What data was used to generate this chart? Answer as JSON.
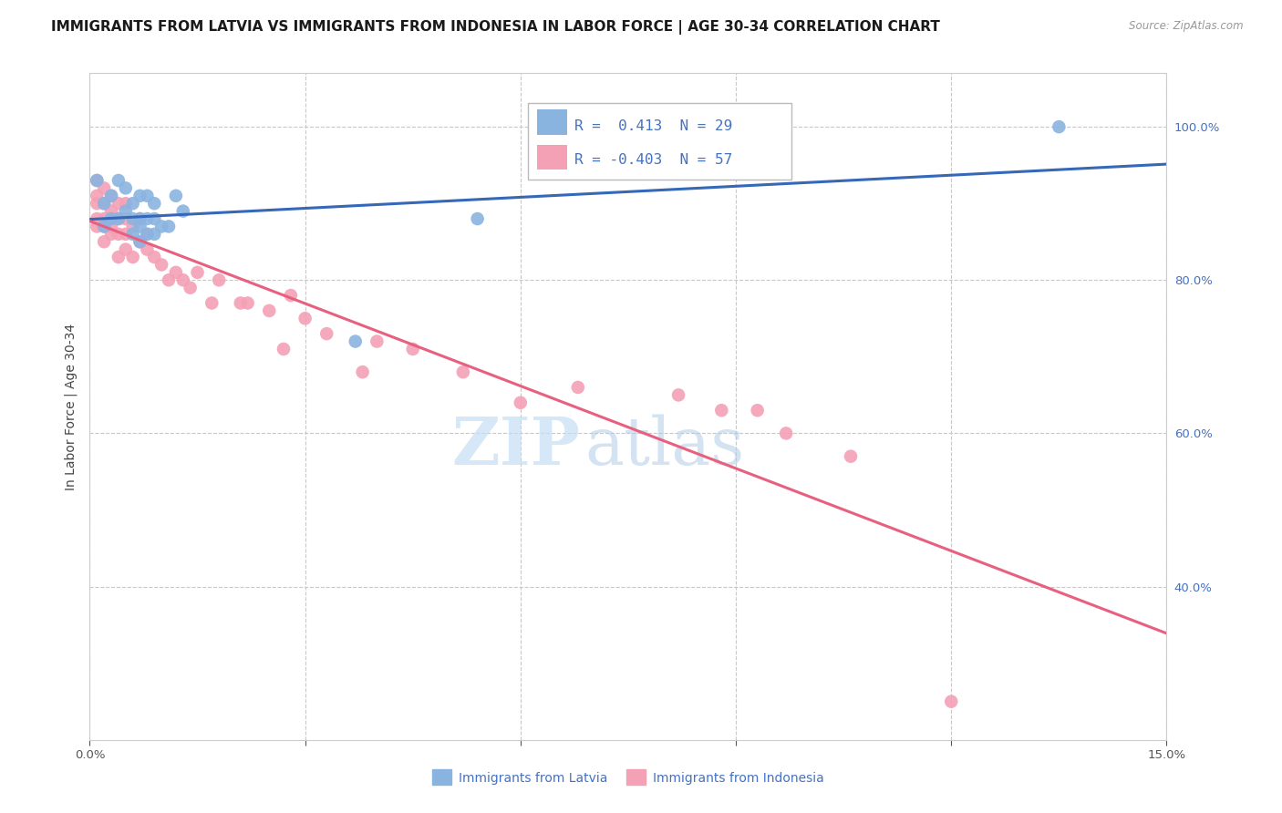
{
  "title": "IMMIGRANTS FROM LATVIA VS IMMIGRANTS FROM INDONESIA IN LABOR FORCE | AGE 30-34 CORRELATION CHART",
  "source": "Source: ZipAtlas.com",
  "ylabel": "In Labor Force | Age 30-34",
  "xlim": [
    0.0,
    0.15
  ],
  "ylim": [
    0.2,
    1.07
  ],
  "xticks": [
    0.0,
    0.03,
    0.06,
    0.09,
    0.12,
    0.15
  ],
  "xticklabels_show": [
    "0.0%",
    "15.0%"
  ],
  "yticks": [
    0.4,
    0.6,
    0.8,
    1.0
  ],
  "yticklabels": [
    "40.0%",
    "60.0%",
    "80.0%",
    "100.0%"
  ],
  "grid_color": "#c8c8c8",
  "background_color": "#ffffff",
  "latvia_color": "#8ab4e0",
  "indonesia_color": "#f4a0b5",
  "latvia_line_color": "#3568b8",
  "indonesia_line_color": "#e86080",
  "legend_label_latvia": "Immigrants from Latvia",
  "legend_label_indonesia": "Immigrants from Indonesia",
  "R_latvia": 0.413,
  "N_latvia": 29,
  "R_indonesia": -0.403,
  "N_indonesia": 57,
  "latvia_scatter_x": [
    0.001,
    0.002,
    0.002,
    0.003,
    0.003,
    0.004,
    0.004,
    0.005,
    0.005,
    0.006,
    0.006,
    0.006,
    0.007,
    0.007,
    0.007,
    0.007,
    0.008,
    0.008,
    0.008,
    0.009,
    0.009,
    0.009,
    0.01,
    0.011,
    0.012,
    0.013,
    0.037,
    0.054,
    0.135
  ],
  "latvia_scatter_y": [
    0.93,
    0.9,
    0.87,
    0.91,
    0.88,
    0.88,
    0.93,
    0.89,
    0.92,
    0.86,
    0.88,
    0.9,
    0.85,
    0.87,
    0.88,
    0.91,
    0.86,
    0.88,
    0.91,
    0.86,
    0.88,
    0.9,
    0.87,
    0.87,
    0.91,
    0.89,
    0.72,
    0.88,
    1.0
  ],
  "indonesia_scatter_x": [
    0.001,
    0.001,
    0.001,
    0.001,
    0.001,
    0.002,
    0.002,
    0.002,
    0.002,
    0.002,
    0.003,
    0.003,
    0.003,
    0.003,
    0.003,
    0.004,
    0.004,
    0.004,
    0.004,
    0.005,
    0.005,
    0.005,
    0.005,
    0.006,
    0.006,
    0.007,
    0.007,
    0.008,
    0.008,
    0.009,
    0.01,
    0.011,
    0.012,
    0.013,
    0.014,
    0.015,
    0.017,
    0.018,
    0.021,
    0.022,
    0.025,
    0.027,
    0.028,
    0.03,
    0.033,
    0.038,
    0.04,
    0.045,
    0.052,
    0.06,
    0.068,
    0.082,
    0.088,
    0.093,
    0.097,
    0.106,
    0.12
  ],
  "indonesia_scatter_y": [
    0.88,
    0.9,
    0.91,
    0.93,
    0.87,
    0.87,
    0.88,
    0.9,
    0.92,
    0.85,
    0.87,
    0.88,
    0.86,
    0.89,
    0.91,
    0.86,
    0.88,
    0.9,
    0.83,
    0.86,
    0.88,
    0.9,
    0.84,
    0.83,
    0.87,
    0.85,
    0.88,
    0.84,
    0.86,
    0.83,
    0.82,
    0.8,
    0.81,
    0.8,
    0.79,
    0.81,
    0.77,
    0.8,
    0.77,
    0.77,
    0.76,
    0.71,
    0.78,
    0.75,
    0.73,
    0.68,
    0.72,
    0.71,
    0.68,
    0.64,
    0.66,
    0.65,
    0.63,
    0.63,
    0.6,
    0.57,
    0.25
  ],
  "watermark_zip": "ZIP",
  "watermark_atlas": "atlas",
  "title_fontsize": 11,
  "axis_label_fontsize": 10,
  "tick_fontsize": 9.5,
  "legend_fontsize": 10,
  "marker_size": 110
}
